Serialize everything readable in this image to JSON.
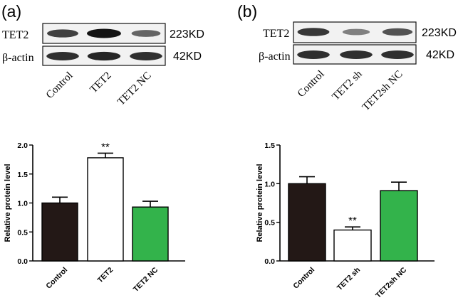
{
  "panels": [
    {
      "letter": "(a)",
      "blot": {
        "rows": [
          {
            "label": "TET2",
            "size": "223KD",
            "band_intensity": [
              0.75,
              1.0,
              0.55
            ]
          },
          {
            "label": "β-actin",
            "size": "42KD",
            "band_intensity": [
              0.85,
              0.9,
              0.85
            ]
          }
        ],
        "lanes": [
          "Control",
          "TET2",
          "TET2 NC"
        ]
      }
    },
    {
      "letter": "(b)",
      "blot": {
        "rows": [
          {
            "label": "TET2",
            "size": "223KD",
            "band_intensity": [
              0.8,
              0.4,
              0.65
            ]
          },
          {
            "label": "β-actin",
            "size": "42KD",
            "band_intensity": [
              0.85,
              0.85,
              0.85
            ]
          }
        ],
        "lanes": [
          "Control",
          "TET2 sh",
          "TET2sh NC"
        ]
      }
    }
  ],
  "chart_data": [
    {
      "type": "bar",
      "categories": [
        "Control",
        "TET2",
        "TET2 NC"
      ],
      "values": [
        1.0,
        1.78,
        0.93
      ],
      "errors": [
        0.1,
        0.08,
        0.1
      ],
      "colors": [
        "#231816",
        "#ffffff",
        "#33b34b"
      ],
      "annotations": [
        "",
        "**",
        ""
      ],
      "ylabel": "Relative protein level",
      "ylim": [
        0,
        2.0
      ],
      "yticks": [
        "0.0",
        "0.5",
        "1.0",
        "1.5",
        "2.0"
      ],
      "ytick_values": [
        0,
        0.5,
        1.0,
        1.5,
        2.0
      ]
    },
    {
      "type": "bar",
      "categories": [
        "Control",
        "TET2 sh",
        "TET2sh NC"
      ],
      "values": [
        1.0,
        0.4,
        0.91
      ],
      "errors": [
        0.09,
        0.04,
        0.11
      ],
      "colors": [
        "#231816",
        "#ffffff",
        "#33b34b"
      ],
      "annotations": [
        "",
        "**",
        ""
      ],
      "ylabel": "Relative protein level",
      "ylim": [
        0,
        1.5
      ],
      "yticks": [
        "0.0",
        "0.5",
        "1.0",
        "1.5"
      ],
      "ytick_values": [
        0,
        0.5,
        1.0,
        1.5
      ]
    }
  ]
}
